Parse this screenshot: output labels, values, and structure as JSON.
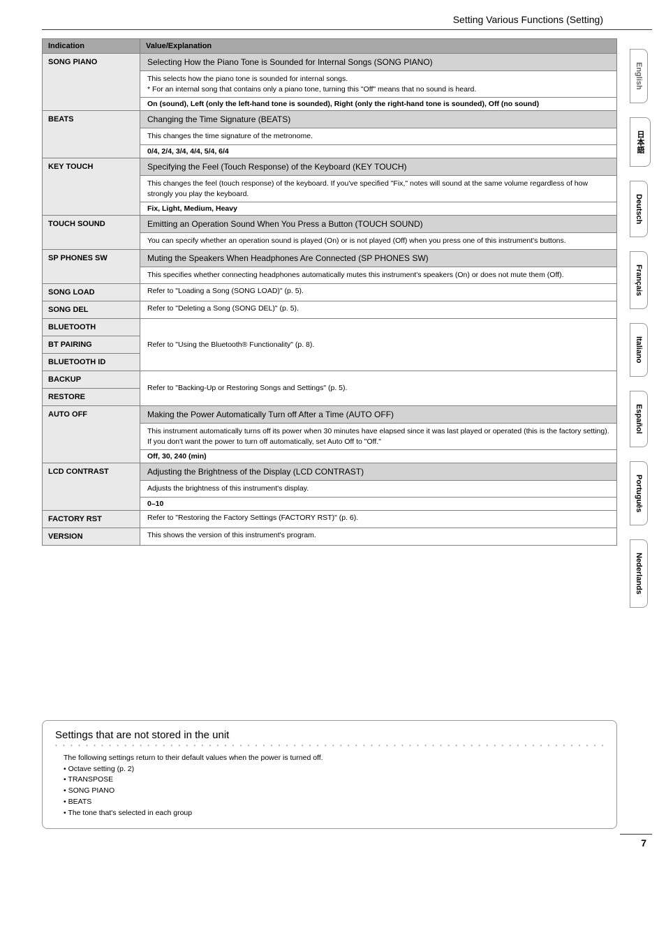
{
  "header": {
    "title": "Setting Various Functions (Setting)"
  },
  "side_tabs": [
    "English",
    "日本語",
    "Deutsch",
    "Français",
    "Italiano",
    "Español",
    "Português",
    "Nederlands"
  ],
  "table": {
    "col1": "Indication",
    "col2": "Value/Explanation",
    "rows": [
      {
        "ind": "SONG PIANO",
        "subhead": "Selecting How the Piano Tone is Sounded for Internal Songs (SONG PIANO)",
        "body": "This selects how the piano tone is sounded for internal songs.\n* For an internal song that contains only a piano tone, turning this \"Off\" means that no sound is heard.",
        "bold": "On (sound), Left (only the left-hand tone is sounded), Right (only the right-hand tone is sounded), Off (no sound)"
      },
      {
        "ind": "BEATS",
        "subhead": "Changing the Time Signature (BEATS)",
        "body": "This changes the time signature of the metronome.",
        "bold": "0/4, 2/4, 3/4, 4/4, 5/4, 6/4"
      },
      {
        "ind": "KEY TOUCH",
        "subhead": "Specifying the Feel (Touch Response) of the Keyboard (KEY TOUCH)",
        "body": "This changes the feel (touch response) of the keyboard. If you've specified \"Fix,\" notes will sound at the same volume regardless of how strongly you play the keyboard.",
        "bold": "Fix, Light, Medium, Heavy"
      },
      {
        "ind": "TOUCH SOUND",
        "subhead": "Emitting an Operation Sound When You Press a Button (TOUCH SOUND)",
        "body": "You can specify whether an operation sound is played (On) or is not played (Off) when you press one of this instrument's buttons."
      },
      {
        "ind": "SP PHONES SW",
        "subhead": "Muting the Speakers When Headphones Are Connected (SP PHONES SW)",
        "body": "This specifies whether connecting headphones automatically mutes this instrument's speakers (On) or does not mute them (Off)."
      },
      {
        "ind": "SONG LOAD",
        "simple": "Refer to \"Loading a Song (SONG LOAD)\" (p. 5)."
      },
      {
        "ind": "SONG DEL",
        "simple": "Refer to \"Deleting a Song (SONG DEL)\" (p. 5)."
      },
      {
        "ind_list": [
          "BLUETOOTH",
          "BT PAIRING",
          "BLUETOOTH ID"
        ],
        "simple": "Refer to \"Using the Bluetooth® Functionality\" (p. 8)."
      },
      {
        "ind_list": [
          "BACKUP",
          "RESTORE"
        ],
        "simple": "Refer to \"Backing-Up or Restoring Songs and Settings\" (p. 5)."
      },
      {
        "ind": "AUTO OFF",
        "subhead": "Making the Power Automatically Turn off After a Time (AUTO OFF)",
        "body": "This instrument automatically turns off its power when 30 minutes have elapsed since it was last played or operated (this is the factory setting).\nIf you don't want the power to turn off automatically, set Auto Off to \"Off.\"",
        "bold": "Off, 30, 240 (min)"
      },
      {
        "ind": "LCD CONTRAST",
        "subhead": "Adjusting the Brightness of the Display (LCD CONTRAST)",
        "body": "Adjusts the brightness of this instrument's display.",
        "bold": "0–10"
      },
      {
        "ind": "FACTORY RST",
        "simple": "Refer to \"Restoring the Factory Settings (FACTORY RST)\" (p. 6)."
      },
      {
        "ind": "VERSION",
        "simple": "This shows the version of this instrument's program."
      }
    ]
  },
  "footer": {
    "title": "Settings that are not stored in the unit",
    "intro": "The following settings return to their default values when the power is turned off.",
    "items": [
      "Octave setting (p. 2)",
      "TRANSPOSE",
      "SONG PIANO",
      "BEATS",
      "The tone that's selected in each group"
    ]
  },
  "page_num": "7"
}
